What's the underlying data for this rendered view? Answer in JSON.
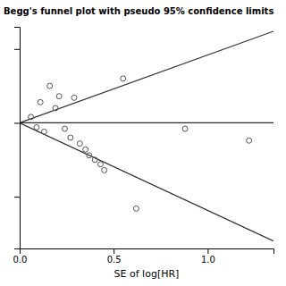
{
  "chart_data": {
    "type": "scatter",
    "title": "Begg's funnel plot with pseudo 95% confidence limits",
    "xlabel": "SE of log[HR]",
    "xlim": [
      0,
      1.35
    ],
    "ylim": [
      -0.85,
      0.65
    ],
    "xticks": [
      {
        "value": 0,
        "label": "0.0"
      },
      {
        "value": 0.5,
        "label": "0.5"
      },
      {
        "value": 1,
        "label": "1.0"
      }
    ],
    "yticks": [
      -0.5,
      0,
      0.5
    ],
    "tick_labels": "x",
    "grid": false,
    "series": [
      {
        "type": "scatter",
        "marker": "circle",
        "color": "#555555",
        "x": [
          0.06,
          0.09,
          0.11,
          0.13,
          0.16,
          0.19,
          0.21,
          0.24,
          0.27,
          0.29,
          0.32,
          0.35,
          0.37,
          0.4,
          0.43,
          0.45,
          0.55,
          0.62,
          0.88,
          1.22
        ],
        "values": [
          0.04,
          -0.03,
          0.14,
          -0.06,
          0.25,
          0.1,
          0.18,
          -0.04,
          -0.1,
          0.17,
          -0.14,
          -0.18,
          -0.22,
          -0.25,
          -0.28,
          -0.32,
          0.3,
          -0.58,
          -0.04,
          -0.12
        ]
      },
      {
        "type": "line",
        "color": "#2a2a2a",
        "x": [
          0,
          1.35
        ],
        "values": [
          0,
          0.62
        ]
      },
      {
        "type": "line",
        "color": "#2a2a2a",
        "x": [
          0,
          1.35
        ],
        "values": [
          0,
          -0.8
        ]
      },
      {
        "type": "line",
        "color": "#2a2a2a",
        "x": [
          0,
          1.35
        ],
        "values": [
          0,
          0
        ]
      }
    ]
  }
}
